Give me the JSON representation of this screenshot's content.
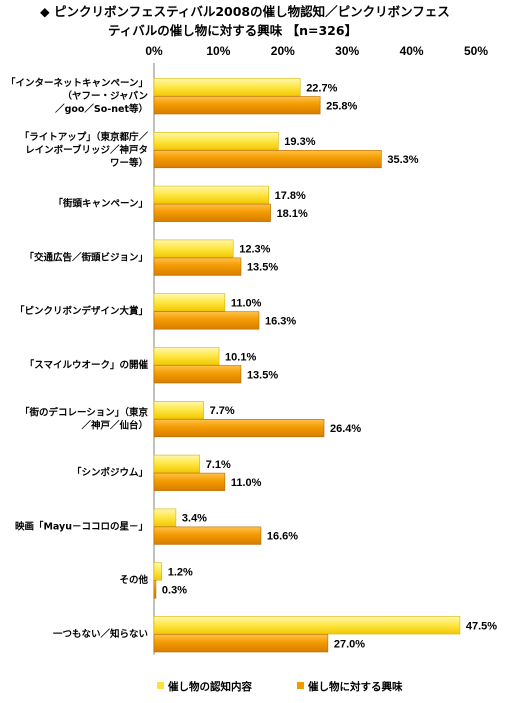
{
  "chart_data": {
    "type": "bar",
    "orientation": "horizontal",
    "title_lines": [
      "◆ ピンクリボンフェスティバル2008の催し物認知／ピンクリボンフェス",
      "ティバルの催し物に対する興味 【n=326】"
    ],
    "xlim": [
      0,
      50
    ],
    "x_ticks": [
      "0%",
      "10%",
      "20%",
      "30%",
      "40%",
      "50%"
    ],
    "grid": false,
    "legend_position": "bottom",
    "categories": [
      [
        "「インターネットキャンペーン」",
        "（ヤフー・ジャパン",
        "／goo／So-net等）"
      ],
      [
        "「ライトアップ」（東京都庁／",
        "レインボーブリッジ／神戸タ",
        "ワー等）"
      ],
      [
        "「街頭キャンペーン」"
      ],
      [
        "「交通広告／街頭ビジョン」"
      ],
      [
        "「ピンクリボンデザイン大賞」"
      ],
      [
        "「スマイルウオーク」の開催"
      ],
      [
        "「街のデコレーション」（東京",
        "／神戸／仙台）"
      ],
      [
        "「シンポジウム」"
      ],
      [
        "映画「Mayu－ココロの星－」"
      ],
      [
        "その他"
      ],
      [
        "一つもない／知らない"
      ]
    ],
    "series": [
      {
        "name": "催し物の認知内容",
        "color": "#FFE040",
        "values": [
          22.7,
          19.3,
          17.8,
          12.3,
          11.0,
          10.1,
          7.7,
          7.1,
          3.4,
          1.2,
          47.5
        ],
        "labels": [
          "22.7%",
          "19.3%",
          "17.8%",
          "12.3%",
          "11.0%",
          "10.1%",
          "7.7%",
          "7.1%",
          "3.4%",
          "1.2%",
          "47.5%"
        ]
      },
      {
        "name": "催し物に対する興味",
        "color": "#F09A00",
        "values": [
          25.8,
          35.3,
          18.1,
          13.5,
          16.3,
          13.5,
          26.4,
          11.0,
          16.6,
          0.3,
          27.0
        ],
        "labels": [
          "25.8%",
          "35.3%",
          "18.1%",
          "13.5%",
          "16.3%",
          "13.5%",
          "26.4%",
          "11.0%",
          "16.6%",
          "0.3%",
          "27.0%"
        ]
      }
    ]
  }
}
